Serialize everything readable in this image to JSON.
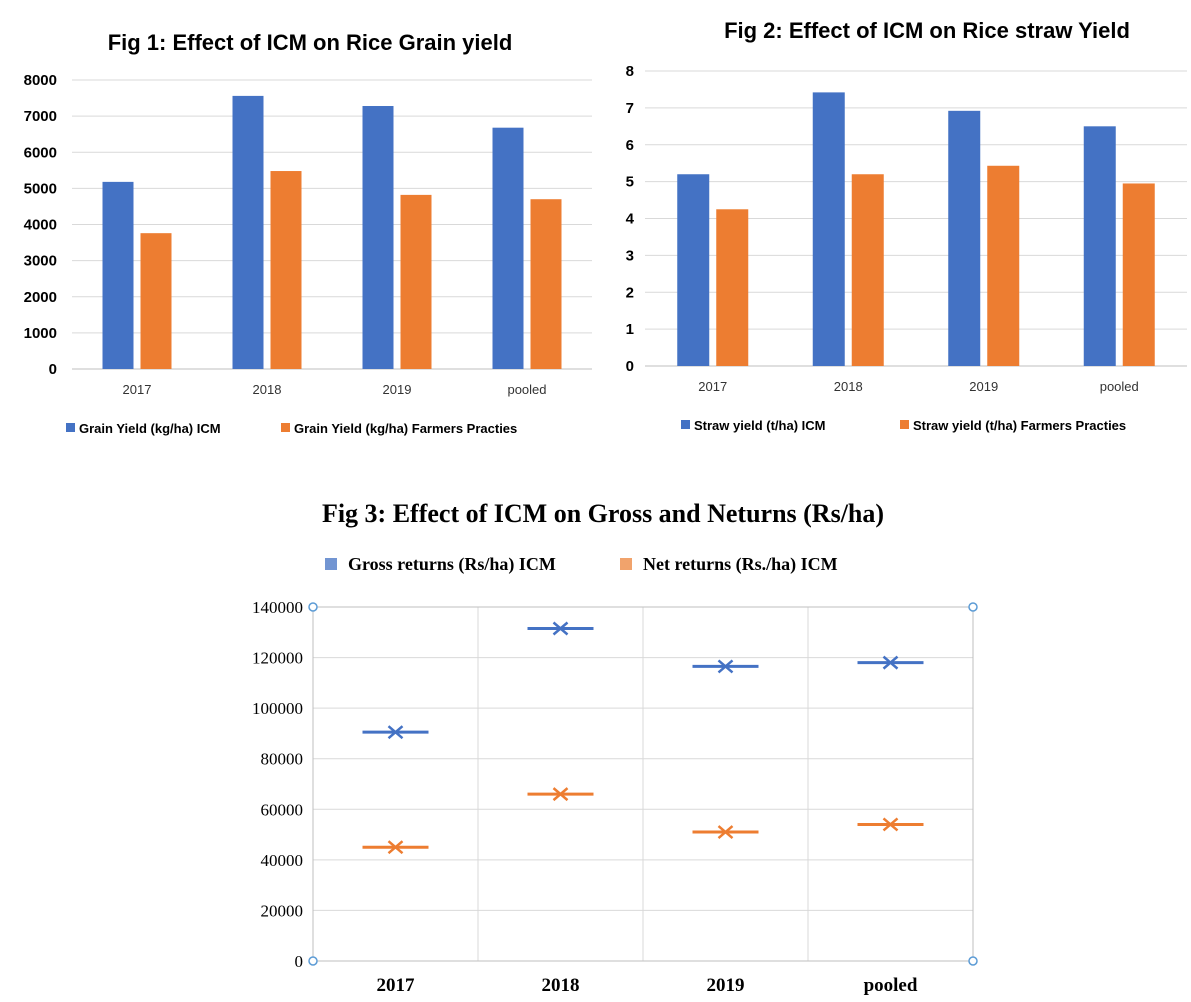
{
  "chart_data": [
    {
      "type": "bar",
      "title": "Fig 1: Effect of ICM on Rice Grain yield",
      "categories": [
        "2017",
        "2018",
        "2019",
        "pooled"
      ],
      "ylim": [
        0,
        8000
      ],
      "yticks": [
        0,
        1000,
        2000,
        3000,
        4000,
        5000,
        6000,
        7000,
        8000
      ],
      "grid": true,
      "legend_position": "bottom",
      "series": [
        {
          "name": "Grain Yield (kg/ha) ICM",
          "color": "#4472C4",
          "values": [
            5180,
            7560,
            7280,
            6680
          ]
        },
        {
          "name": "Grain Yield (kg/ha) Farmers Practies",
          "color": "#ED7D31",
          "values": [
            3760,
            5480,
            4820,
            4700
          ]
        }
      ]
    },
    {
      "type": "bar",
      "title": "Fig 2: Effect of ICM on Rice straw Yield",
      "categories": [
        "2017",
        "2018",
        "2019",
        "pooled"
      ],
      "ylim": [
        0,
        8
      ],
      "yticks": [
        0,
        1,
        2,
        3,
        4,
        5,
        6,
        7,
        8
      ],
      "grid": true,
      "legend_position": "bottom",
      "series": [
        {
          "name": "Straw yield (t/ha) ICM",
          "color": "#4472C4",
          "values": [
            5.2,
            7.42,
            6.92,
            6.5
          ]
        },
        {
          "name": "Straw yield (t/ha) Farmers Practies",
          "color": "#ED7D31",
          "values": [
            4.25,
            5.2,
            5.43,
            4.95
          ]
        }
      ]
    },
    {
      "type": "scatter",
      "title": "Fig 3: Effect of ICM on Gross and Neturns (Rs/ha)",
      "categories": [
        "2017",
        "2018",
        "2019",
        "pooled"
      ],
      "ylim": [
        0,
        140000
      ],
      "yticks": [
        0,
        20000,
        40000,
        60000,
        80000,
        100000,
        120000,
        140000
      ],
      "grid": true,
      "legend_position": "top",
      "series": [
        {
          "name": "Gross returns (Rs/ha) ICM",
          "color": "#4472C4",
          "values": [
            90500,
            131500,
            116500,
            118000
          ]
        },
        {
          "name": "Net returns (Rs./ha) ICM",
          "color": "#ED7D31",
          "values": [
            45000,
            66000,
            51000,
            54000
          ]
        }
      ]
    }
  ]
}
